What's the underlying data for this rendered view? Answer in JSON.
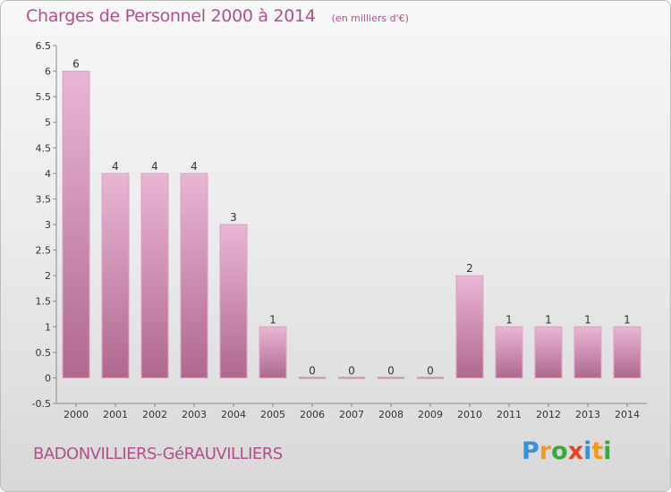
{
  "header": {
    "title": "Charges de Personnel 2000 à 2014",
    "subtitle": "(en milliers d'€)"
  },
  "footer": {
    "commune": "BADONVILLIERS-GéRAUVILLIERS"
  },
  "logo": {
    "text": "Proxiti",
    "letters": [
      {
        "char": "P",
        "color": "#3a8fd6"
      },
      {
        "char": "r",
        "color": "#f29a1f"
      },
      {
        "char": "o",
        "color": "#3aa83a"
      },
      {
        "char": "x",
        "color": "#e0452c"
      },
      {
        "char": "i",
        "color": "#3a8fd6"
      },
      {
        "char": "t",
        "color": "#f29a1f"
      },
      {
        "char": "i",
        "color": "#3aa83a"
      }
    ]
  },
  "colors": {
    "bar_light": "#eab6d6",
    "bar_dark": "#b0688f",
    "text_accent": "#b14f8d"
  },
  "chart_data": {
    "type": "bar",
    "title": "Charges de Personnel 2000 à 2014",
    "subtitle": "(en milliers d'€)",
    "categories": [
      "2000",
      "2001",
      "2002",
      "2003",
      "2004",
      "2005",
      "2006",
      "2007",
      "2008",
      "2009",
      "2010",
      "2011",
      "2012",
      "2013",
      "2014"
    ],
    "values": [
      6,
      4,
      4,
      4,
      3,
      1,
      0,
      0,
      0,
      0,
      2,
      1,
      1,
      1,
      1
    ],
    "value_labels": [
      "6",
      "4",
      "4",
      "4",
      "3",
      "1",
      "0",
      "0",
      "0",
      "0",
      "2",
      "1",
      "1",
      "1",
      "1"
    ],
    "yticks": [
      "-0.5",
      "0",
      "0.5",
      "1",
      "1.5",
      "2",
      "2.5",
      "3",
      "3.5",
      "4",
      "4.5",
      "5",
      "5.5",
      "6",
      "6.5"
    ],
    "ylim": [
      -0.5,
      6.5
    ],
    "grid": false,
    "legend": "none"
  }
}
